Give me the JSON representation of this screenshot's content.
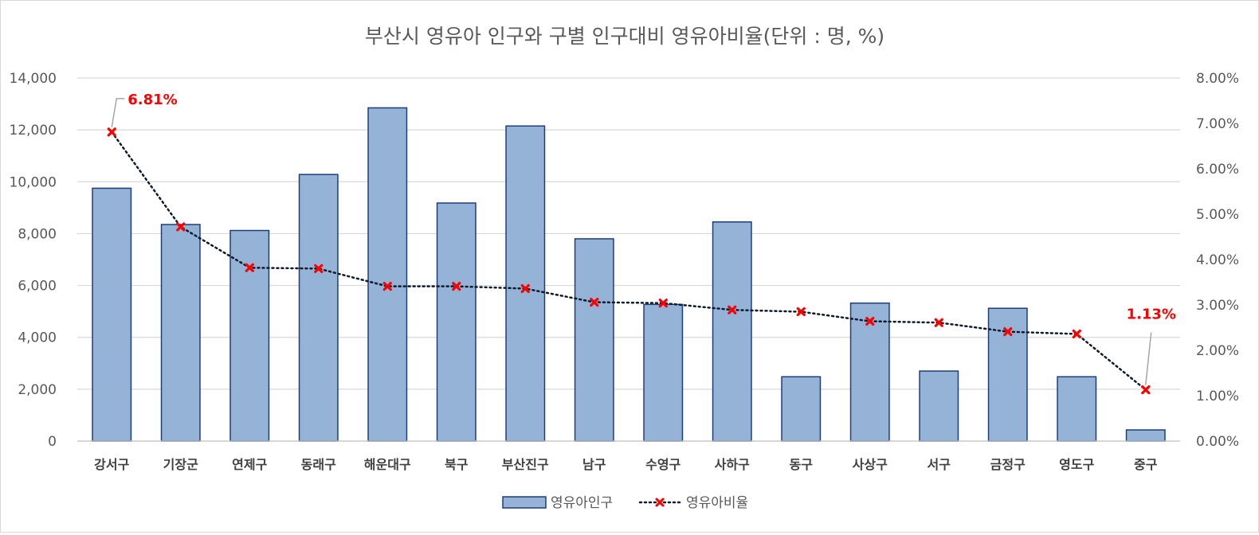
{
  "chart_data": {
    "type": "bar",
    "title": "부산시 영유아 인구와 구별 인구대비 영유아비율(단위 : 명, %)",
    "categories": [
      "강서구",
      "기장군",
      "연제구",
      "동래구",
      "해운대구",
      "북구",
      "부산진구",
      "남구",
      "수영구",
      "사하구",
      "동구",
      "사상구",
      "서구",
      "금정구",
      "영도구",
      "중구"
    ],
    "series": [
      {
        "name": "영유아인구",
        "type": "bar",
        "axis": "left",
        "color": "#95b3d7",
        "border": "#1f3d7a",
        "values": [
          9750,
          8350,
          8120,
          10280,
          12850,
          9180,
          12150,
          7800,
          5270,
          8450,
          2480,
          5320,
          2700,
          5120,
          2480,
          430
        ]
      },
      {
        "name": "영유아비율",
        "type": "line",
        "axis": "right",
        "color": "#0d1b2a",
        "marker_color": "#ff0000",
        "values": [
          6.81,
          4.72,
          3.82,
          3.8,
          3.41,
          3.41,
          3.36,
          3.06,
          3.04,
          2.89,
          2.85,
          2.64,
          2.61,
          2.41,
          2.36,
          1.13
        ]
      }
    ],
    "y_left": {
      "min": 0,
      "max": 14000,
      "ticks": [
        "0",
        "2,000",
        "4,000",
        "6,000",
        "8,000",
        "10,000",
        "12,000",
        "14,000"
      ]
    },
    "y_right": {
      "min": 0,
      "max": 8,
      "ticks": [
        "0.00%",
        "1.00%",
        "2.00%",
        "3.00%",
        "4.00%",
        "5.00%",
        "6.00%",
        "7.00%",
        "8.00%"
      ]
    },
    "annotations": [
      {
        "category": "강서구",
        "text": "6.81%"
      },
      {
        "category": "중구",
        "text": "1.13%"
      }
    ],
    "grid": true,
    "legend_position": "bottom"
  }
}
